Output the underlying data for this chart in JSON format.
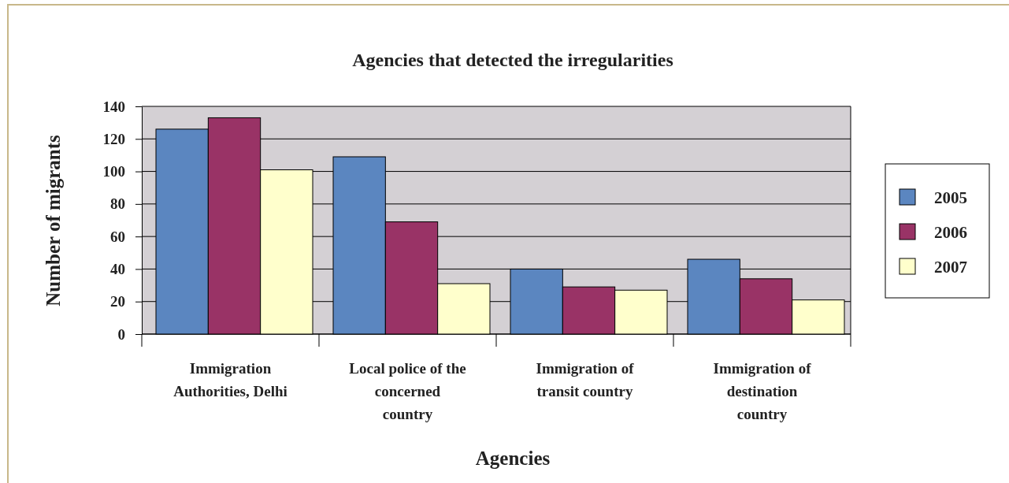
{
  "chart_data": {
    "type": "bar",
    "title": "Agencies that detected the irregularities",
    "xlabel": "Agencies",
    "ylabel": "Number of migrants",
    "categories": [
      "Immigration Authorities, Delhi",
      "Local police of the concerned country",
      "Immigration of transit country",
      "Immigration of destination country"
    ],
    "series": [
      {
        "name": "2005",
        "color": "#5b86c0",
        "values": [
          126,
          109,
          40,
          46
        ]
      },
      {
        "name": "2006",
        "color": "#993366",
        "values": [
          133,
          69,
          29,
          34
        ]
      },
      {
        "name": "2007",
        "color": "#ffffcc",
        "values": [
          101,
          31,
          27,
          21
        ]
      }
    ],
    "ylim": [
      0,
      140
    ],
    "yticks": [
      0,
      20,
      40,
      60,
      80,
      100,
      120,
      140
    ],
    "grid": "y",
    "legend": "right"
  }
}
